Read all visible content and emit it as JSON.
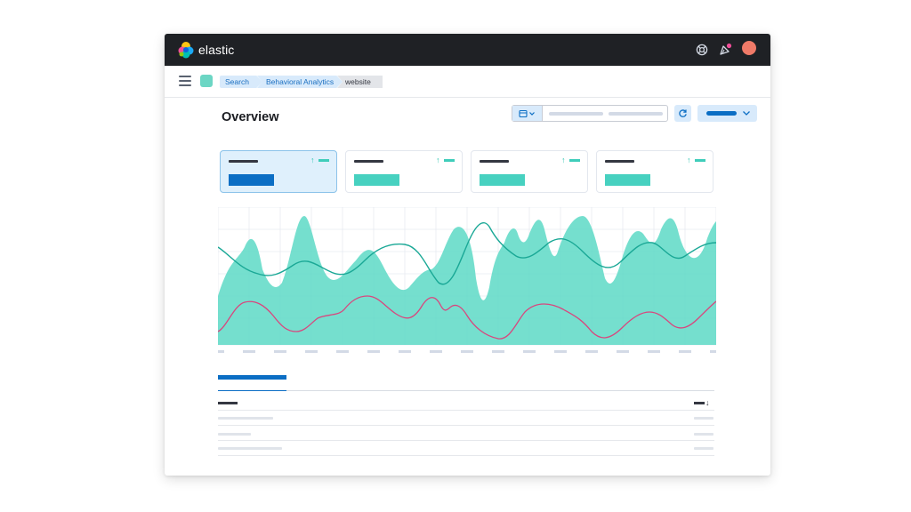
{
  "app": {
    "name": "elastic",
    "colors": {
      "topbar": "#1f2125",
      "accent": "#0b6ec4",
      "teal": "#5dd9c5",
      "pink": "#d9467e",
      "avatar": "#f07a68"
    }
  },
  "header": {
    "icons": [
      "help-icon",
      "news-feed-icon"
    ],
    "avatar": "user-avatar"
  },
  "breadcrumbs": [
    "Search",
    "Behavioral Analytics",
    "website"
  ],
  "page": {
    "title": "Overview"
  },
  "toolbar": {
    "date_icon": "calendar-icon",
    "refresh_icon": "refresh-icon"
  },
  "metric_cards": [
    {
      "active": true,
      "trend": "up"
    },
    {
      "active": false,
      "trend": "up"
    },
    {
      "active": false,
      "trend": "up"
    },
    {
      "active": false,
      "trend": "up"
    }
  ],
  "chart_data": {
    "type": "area",
    "grid": true,
    "series": [
      {
        "color": "#5dd9c5",
        "style": "area"
      },
      {
        "color": "#2bb8a4",
        "style": "line"
      },
      {
        "color": "#d9467e",
        "style": "line"
      }
    ]
  },
  "table": {
    "sort_icon": "arrow-down-icon",
    "rows": 3
  }
}
